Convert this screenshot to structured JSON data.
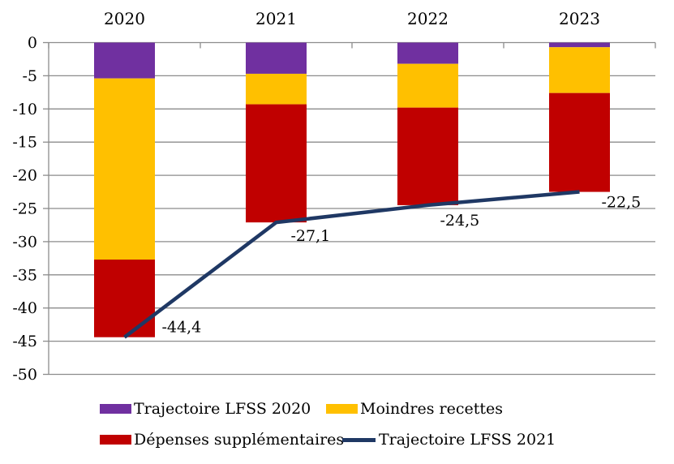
{
  "chart_data": {
    "type": "stacked-bar+line",
    "title": "",
    "categories": [
      "2020",
      "2021",
      "2022",
      "2023"
    ],
    "series": [
      {
        "name": "Trajectoire LFSS 2020",
        "color": "#7030A0",
        "values": [
          -5.4,
          -4.7,
          -3.2,
          -0.7
        ]
      },
      {
        "name": "Moindres recettes",
        "color": "#FFC000",
        "values": [
          -27.3,
          -4.6,
          -6.6,
          -6.9
        ]
      },
      {
        "name": "Dépenses supplémentaires",
        "color": "#C00000",
        "values": [
          -11.7,
          -17.8,
          -14.7,
          -14.9
        ]
      }
    ],
    "line_series": {
      "name": "Trajectoire LFSS 2021",
      "color": "#1F3864",
      "values": [
        -44.4,
        -27.1,
        -24.5,
        -22.5
      ],
      "point_labels": [
        "-44,4",
        "-27,1",
        "-24,5",
        "-22,5"
      ]
    },
    "y_axis": {
      "min": -50,
      "max": 0,
      "step": 5,
      "tick_labels": [
        "0",
        "-5",
        "-10",
        "-15",
        "-20",
        "-25",
        "-30",
        "-35",
        "-40",
        "-45",
        "-50"
      ]
    },
    "x_axis_position": "top",
    "grid": true,
    "axis_color": "#8C8C8C",
    "text_color": "#000000",
    "legend_position": "bottom"
  }
}
